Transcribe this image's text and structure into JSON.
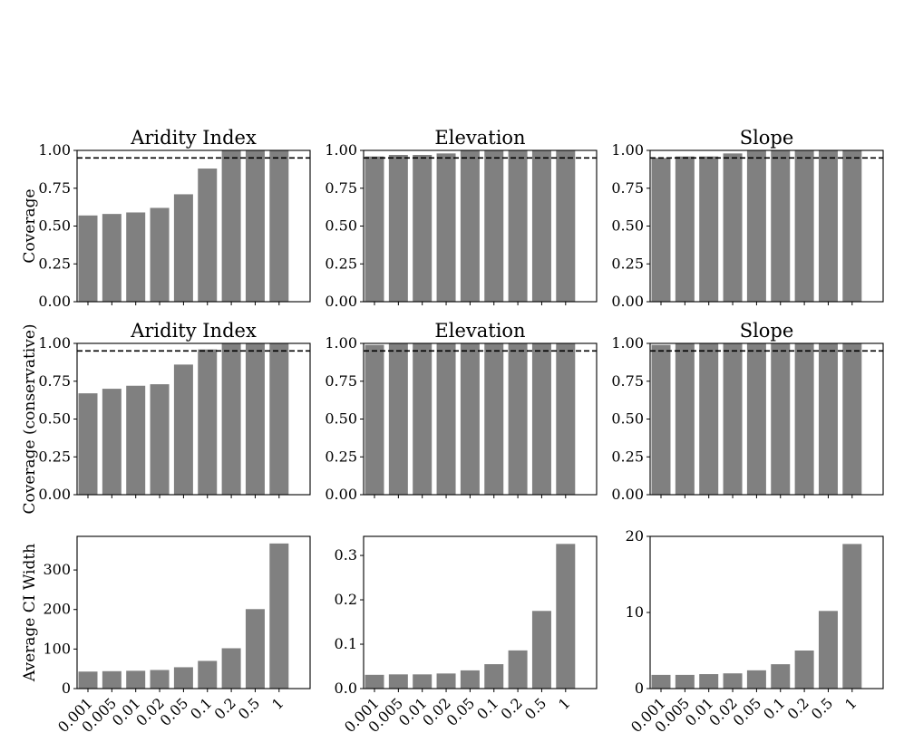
{
  "chart_data": [
    {
      "type": "bar",
      "panel": "row1-col1",
      "title": "Aridity Index",
      "ylabel": "Coverage",
      "categories": [
        "0.001",
        "0.005",
        "0.01",
        "0.02",
        "0.05",
        "0.1",
        "0.2",
        "0.5",
        "1"
      ],
      "values": [
        0.57,
        0.58,
        0.59,
        0.62,
        0.71,
        0.88,
        1.0,
        1.0,
        1.0
      ],
      "ylim": [
        0,
        1.0
      ],
      "yticks": [
        "0.00",
        "0.25",
        "0.50",
        "0.75",
        "1.00"
      ],
      "yticks_values": [
        0,
        0.25,
        0.5,
        0.75,
        1.0
      ],
      "reference_line": 0.95,
      "show_xticklabels": false
    },
    {
      "type": "bar",
      "panel": "row1-col2",
      "title": "Elevation",
      "ylabel": "",
      "categories": [
        "0.001",
        "0.005",
        "0.01",
        "0.02",
        "0.05",
        "0.1",
        "0.2",
        "0.5",
        "1"
      ],
      "values": [
        0.96,
        0.97,
        0.97,
        0.98,
        1.0,
        1.0,
        1.0,
        1.0,
        1.0
      ],
      "ylim": [
        0,
        1.0
      ],
      "yticks": [
        "0.00",
        "0.25",
        "0.50",
        "0.75",
        "1.00"
      ],
      "yticks_values": [
        0,
        0.25,
        0.5,
        0.75,
        1.0
      ],
      "reference_line": 0.95,
      "show_xticklabels": false
    },
    {
      "type": "bar",
      "panel": "row1-col3",
      "title": "Slope",
      "ylabel": "",
      "categories": [
        "0.001",
        "0.005",
        "0.01",
        "0.02",
        "0.05",
        "0.1",
        "0.2",
        "0.5",
        "1"
      ],
      "values": [
        0.95,
        0.96,
        0.96,
        0.98,
        1.0,
        1.0,
        1.0,
        1.0,
        1.0
      ],
      "ylim": [
        0,
        1.0
      ],
      "yticks": [
        "0.00",
        "0.25",
        "0.50",
        "0.75",
        "1.00"
      ],
      "yticks_values": [
        0,
        0.25,
        0.5,
        0.75,
        1.0
      ],
      "reference_line": 0.95,
      "show_xticklabels": false
    },
    {
      "type": "bar",
      "panel": "row2-col1",
      "title": "Aridity Index",
      "ylabel": "Coverage (conservative)",
      "categories": [
        "0.001",
        "0.005",
        "0.01",
        "0.02",
        "0.05",
        "0.1",
        "0.2",
        "0.5",
        "1"
      ],
      "values": [
        0.67,
        0.7,
        0.72,
        0.73,
        0.86,
        0.96,
        1.0,
        1.0,
        1.0
      ],
      "ylim": [
        0,
        1.0
      ],
      "yticks": [
        "0.00",
        "0.25",
        "0.50",
        "0.75",
        "1.00"
      ],
      "yticks_values": [
        0,
        0.25,
        0.5,
        0.75,
        1.0
      ],
      "reference_line": 0.95,
      "show_xticklabels": false
    },
    {
      "type": "bar",
      "panel": "row2-col2",
      "title": "Elevation",
      "ylabel": "",
      "categories": [
        "0.001",
        "0.005",
        "0.01",
        "0.02",
        "0.05",
        "0.1",
        "0.2",
        "0.5",
        "1"
      ],
      "values": [
        0.99,
        1.0,
        1.0,
        1.0,
        1.0,
        1.0,
        1.0,
        1.0,
        1.0
      ],
      "ylim": [
        0,
        1.0
      ],
      "yticks": [
        "0.00",
        "0.25",
        "0.50",
        "0.75",
        "1.00"
      ],
      "yticks_values": [
        0,
        0.25,
        0.5,
        0.75,
        1.0
      ],
      "reference_line": 0.95,
      "show_xticklabels": false
    },
    {
      "type": "bar",
      "panel": "row2-col3",
      "title": "Slope",
      "ylabel": "",
      "categories": [
        "0.001",
        "0.005",
        "0.01",
        "0.02",
        "0.05",
        "0.1",
        "0.2",
        "0.5",
        "1"
      ],
      "values": [
        0.99,
        1.0,
        1.0,
        1.0,
        1.0,
        1.0,
        1.0,
        1.0,
        1.0
      ],
      "ylim": [
        0,
        1.0
      ],
      "yticks": [
        "0.00",
        "0.25",
        "0.50",
        "0.75",
        "1.00"
      ],
      "yticks_values": [
        0,
        0.25,
        0.5,
        0.75,
        1.0
      ],
      "reference_line": 0.95,
      "show_xticklabels": false
    },
    {
      "type": "bar",
      "panel": "row3-col1",
      "title": "",
      "ylabel": "Average CI Width",
      "categories": [
        "0.001",
        "0.005",
        "0.01",
        "0.02",
        "0.05",
        "0.1",
        "0.2",
        "0.5",
        "1"
      ],
      "values": [
        43,
        44,
        45,
        47,
        54,
        70,
        102,
        201,
        367
      ],
      "ylim": [
        0,
        385
      ],
      "yticks": [
        "0",
        "100",
        "200",
        "300"
      ],
      "yticks_values": [
        0,
        100,
        200,
        300
      ],
      "reference_line": null,
      "show_xticklabels": true
    },
    {
      "type": "bar",
      "panel": "row3-col2",
      "title": "",
      "ylabel": "",
      "categories": [
        "0.001",
        "0.005",
        "0.01",
        "0.02",
        "0.05",
        "0.1",
        "0.2",
        "0.5",
        "1"
      ],
      "values": [
        0.031,
        0.032,
        0.032,
        0.034,
        0.041,
        0.055,
        0.086,
        0.175,
        0.326
      ],
      "ylim": [
        0,
        0.343
      ],
      "yticks": [
        "0.0",
        "0.1",
        "0.2",
        "0.3"
      ],
      "yticks_values": [
        0,
        0.1,
        0.2,
        0.3
      ],
      "reference_line": null,
      "show_xticklabels": true
    },
    {
      "type": "bar",
      "panel": "row3-col3",
      "title": "",
      "ylabel": "",
      "categories": [
        "0.001",
        "0.005",
        "0.01",
        "0.02",
        "0.05",
        "0.1",
        "0.2",
        "0.5",
        "1"
      ],
      "values": [
        1.8,
        1.8,
        1.9,
        2.0,
        2.4,
        3.2,
        5.0,
        10.2,
        19.0
      ],
      "ylim": [
        0,
        20
      ],
      "yticks": [
        "0",
        "10",
        "20"
      ],
      "yticks_values": [
        0,
        10,
        20
      ],
      "reference_line": null,
      "show_xticklabels": true
    }
  ]
}
